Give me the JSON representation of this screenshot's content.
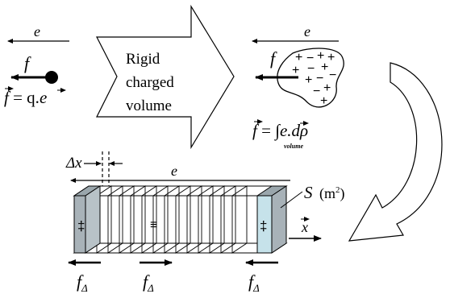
{
  "point_charge": {
    "field_label": "e",
    "force_label": "f",
    "equation": "f = q.e",
    "eq_vec_f": "f",
    "eq_middle": " = q.",
    "eq_vec_e": "e"
  },
  "transition_arrow": {
    "line1": "Rigid",
    "line2": "charged",
    "line3": "volume"
  },
  "charged_volume": {
    "field_label": "e",
    "force_label": "f",
    "eq_vec_f": "f",
    "eq_equals": " = ",
    "eq_integral": "∫",
    "eq_vec_e": "e",
    "eq_rest": ".dρ",
    "eq_subscript": "volume",
    "charges": [
      "+",
      "−",
      "+",
      "+",
      "+",
      "−",
      "+",
      "−",
      "+",
      "−",
      "−",
      "+",
      "+"
    ]
  },
  "slab": {
    "dx_label": "Δx",
    "field_label": "e",
    "area_label": "S",
    "area_unit": "(m",
    "area_unit_exp": "2",
    "area_unit_close": ")",
    "axis_label": "x",
    "force_label": "f",
    "force_subscript": "Δ",
    "left_end_charges": "‡",
    "right_end_charges": "‡",
    "middle_charges": "≡"
  },
  "colors": {
    "ink": "#000000",
    "end_cap": "#a8b2b8",
    "end_cap_face": "#c6e2ea",
    "charge_blob": "#ffffff"
  }
}
